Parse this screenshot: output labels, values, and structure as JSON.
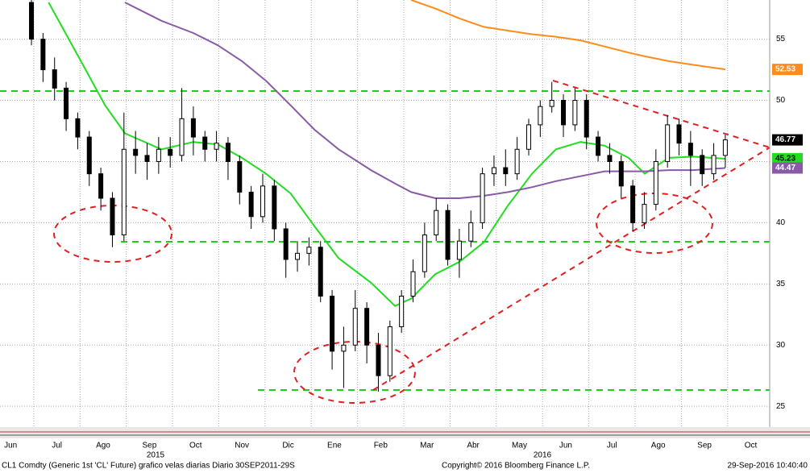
{
  "chart_data": {
    "type": "candlestick",
    "xticks": [
      {
        "value": 0,
        "label": "Jun"
      },
      {
        "value": 1,
        "label": "Jul"
      },
      {
        "value": 2,
        "label": "Ago"
      },
      {
        "value": 3,
        "label": "Sep"
      },
      {
        "value": 4,
        "label": "Oct"
      },
      {
        "value": 5,
        "label": "Nov"
      },
      {
        "value": 6,
        "label": "Dic"
      },
      {
        "value": 7,
        "label": "Ene"
      },
      {
        "value": 8,
        "label": "Feb"
      },
      {
        "value": 9,
        "label": "Mar"
      },
      {
        "value": 10,
        "label": "Abr"
      },
      {
        "value": 11,
        "label": "May"
      },
      {
        "value": 12,
        "label": "Jun"
      },
      {
        "value": 13,
        "label": "Jul"
      },
      {
        "value": 14,
        "label": "Ago"
      },
      {
        "value": 15,
        "label": "Sep"
      },
      {
        "value": 16,
        "label": "Oct"
      }
    ],
    "years": [
      "2015",
      "2016"
    ],
    "xlim": [
      0.27,
      16.91
    ],
    "ylim": [
      23.3,
      58.2
    ],
    "yticks": [
      25,
      30,
      35,
      40,
      45,
      50,
      55
    ],
    "grid": true,
    "candles": {
      "x": [
        0.95,
        1.2,
        1.45,
        1.7,
        1.95,
        2.2,
        2.45,
        2.7,
        2.95,
        3.2,
        3.45,
        3.7,
        3.95,
        4.2,
        4.45,
        4.7,
        4.95,
        5.2,
        5.45,
        5.7,
        5.95,
        6.2,
        6.45,
        6.7,
        6.95,
        7.2,
        7.45,
        7.7,
        7.95,
        8.2,
        8.45,
        8.7,
        8.95,
        9.2,
        9.45,
        9.7,
        9.95,
        10.2,
        10.45,
        10.7,
        10.95,
        11.2,
        11.45,
        11.7,
        11.95,
        12.2,
        12.45,
        12.7,
        12.95,
        13.2,
        13.45,
        13.7,
        13.95,
        14.2,
        14.45,
        14.7,
        14.95,
        15.2,
        15.45,
        15.7,
        15.95
      ],
      "open": [
        58,
        55,
        52.5,
        51,
        48.5,
        47,
        44,
        42,
        39,
        46,
        45.5,
        45,
        46,
        45.5,
        48.5,
        47,
        46,
        46.5,
        45,
        42.5,
        40.5,
        43,
        39.5,
        37,
        37.5,
        38,
        34,
        29.5,
        30,
        33,
        30,
        27.5,
        31.5,
        34,
        36,
        39,
        41,
        37,
        38.5,
        40,
        44,
        44.5,
        44,
        46,
        48,
        49.5,
        50,
        48,
        50,
        47,
        45.5,
        45,
        43,
        40,
        41.5,
        45,
        48,
        46.5,
        45.5,
        44,
        45.5
      ],
      "high": [
        58.2,
        55.5,
        53.5,
        51.5,
        49,
        47.5,
        44.5,
        42.5,
        49,
        47.5,
        46.5,
        47,
        47,
        51,
        49.5,
        47.5,
        47.5,
        47,
        45.5,
        43,
        44,
        43.5,
        40,
        38.5,
        38.8,
        38.5,
        34.5,
        31.5,
        34.5,
        33.5,
        31,
        32,
        34.5,
        37,
        40,
        42,
        41.5,
        39.5,
        41,
        44.5,
        45.5,
        46,
        47,
        48.5,
        50,
        51.5,
        50.5,
        51,
        50.5,
        47.5,
        46.5,
        45.5,
        43.5,
        42.5,
        46,
        48.8,
        48.5,
        47.5,
        46,
        46.5,
        47.2
      ],
      "low": [
        54.5,
        51.5,
        50,
        47.5,
        46,
        43,
        41,
        38,
        38.5,
        44,
        43.5,
        44,
        44.5,
        45,
        45.5,
        45,
        45,
        43.5,
        41.5,
        39.5,
        40,
        38.5,
        35.5,
        36,
        36.5,
        33.5,
        28,
        26.5,
        29.5,
        28.5,
        26.2,
        27,
        31,
        33.5,
        35.5,
        38.5,
        36.5,
        35.5,
        38,
        39.5,
        43,
        43,
        43.5,
        45.5,
        47,
        49,
        47,
        47.5,
        46,
        45,
        44,
        42,
        39.3,
        39.5,
        41,
        44.5,
        45.5,
        43,
        43,
        43.5,
        44.5
      ],
      "close": [
        55,
        52.5,
        51,
        48.5,
        47,
        44,
        42,
        39,
        46,
        45.5,
        45,
        46,
        45.5,
        48.5,
        47,
        46,
        46.5,
        45,
        42.5,
        40.5,
        43,
        39.5,
        37,
        37.5,
        38,
        34,
        29.5,
        30,
        33,
        30,
        27.5,
        31.5,
        34,
        36,
        39,
        41,
        37,
        38.5,
        40,
        44,
        44.5,
        44,
        46,
        48,
        49.5,
        50,
        48,
        50,
        47,
        45.5,
        45,
        43,
        40,
        41.5,
        45,
        48,
        46.5,
        45.5,
        44,
        45.5,
        46.77
      ],
      "last_value": 46.77
    },
    "ma_x": [
      1.32,
      2.02,
      2.54,
      2.97,
      3.76,
      4.45,
      4.98,
      5.5,
      6.02,
      6.55,
      7.07,
      7.59,
      8.29,
      8.81,
      9.16,
      9.68,
      10.2,
      10.73,
      11.25,
      11.77,
      12.29,
      12.82,
      13.34,
      13.86,
      14.21,
      14.73,
      15.26,
      15.95
    ],
    "series": [
      {
        "color": "#ff8c1a",
        "values": [
          null,
          null,
          null,
          null,
          null,
          null,
          null,
          null,
          null,
          null,
          null,
          null,
          null,
          null,
          58.2,
          57.5,
          56.7,
          56,
          55.7,
          55.4,
          55.2,
          54.9,
          54.4,
          53.9,
          53.6,
          53.2,
          52.9,
          52.53
        ],
        "last_value": 52.53
      },
      {
        "color": "#22dd22",
        "values": [
          58,
          53.2,
          49.6,
          47.3,
          46,
          46.6,
          46.4,
          45.3,
          44,
          42.4,
          39.7,
          37.1,
          35.1,
          33.2,
          33.8,
          35.8,
          36.8,
          38.4,
          41.4,
          44,
          46,
          46.6,
          46.3,
          45.3,
          44,
          45.3,
          45.4,
          45.23
        ],
        "last_value": 45.23
      },
      {
        "color": "#8a5aa8",
        "values": [
          null,
          null,
          null,
          58,
          56.5,
          55.5,
          54.5,
          53.2,
          51.6,
          49.6,
          47.6,
          46,
          44.3,
          43.2,
          42.5,
          42,
          42,
          42.2,
          42.5,
          42.9,
          43.4,
          43.8,
          44.2,
          44.2,
          44.2,
          44.3,
          44.3,
          44.47
        ],
        "last_value": 44.47
      }
    ],
    "footer": {
      "left": "CL1 Comdty (Generic 1st 'CL' Future) grafico velas diarias  Diario 30SEP2011-29S",
      "center": "Copyright© 2016 Bloomberg Finance L.P.",
      "right": "29-Sep-2016 10:40:40"
    }
  }
}
